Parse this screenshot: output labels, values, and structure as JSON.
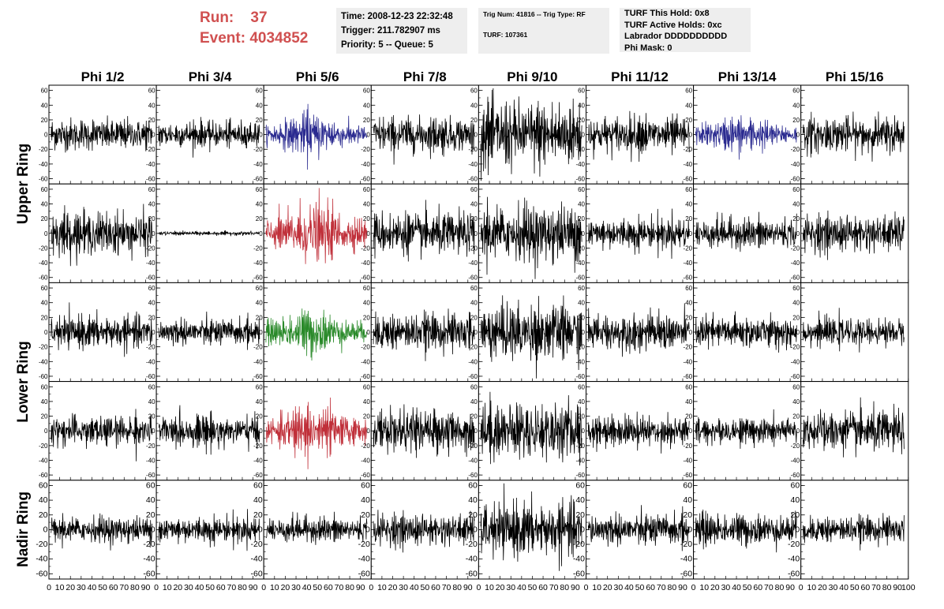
{
  "header": {
    "run_label": "Run:",
    "run_value": "37",
    "event_label": "Event:",
    "event_value": "4034852",
    "time_line": "Time: 2008-12-23 22:32:48",
    "trigger_line": "Trigger: 211.782907 ms",
    "priority_line": "Priority: 5 -- Queue: 5",
    "trig_line": "Trig Num: 41816 -- Trig Type: RF",
    "turf_line": "TURF: 107361",
    "turf_hold": "TURF This Hold: 0x8",
    "turf_active": "TURF Active Holds: 0xc",
    "labrador": "Labrador DDDDDDDDDD",
    "phi_mask": "Phi Mask: 0"
  },
  "columns": [
    "Phi 1/2",
    "Phi 3/4",
    "Phi 5/6",
    "Phi 7/8",
    "Phi 9/10",
    "Phi 11/12",
    "Phi 13/14",
    "Phi 15/16"
  ],
  "rows": [
    "Upper Ring",
    "Lower Ring",
    "Nadir Ring"
  ],
  "colors": {
    "black": "#000000",
    "blue": "#2b2b90",
    "red": "#c0303a",
    "green": "#2a8a2a"
  },
  "chart_data": {
    "type": "line",
    "x_range": [
      0,
      100
    ],
    "y_range": [
      -65,
      65
    ],
    "y_ticks": [
      "60",
      "40",
      "20",
      "0",
      "-20",
      "-40",
      "-60"
    ],
    "x_ticks": [
      "0",
      "10",
      "20",
      "30",
      "40",
      "50",
      "60",
      "70",
      "80",
      "90",
      "100"
    ],
    "panel_rows": 5,
    "panel_cols": 8,
    "amplitudes": [
      [
        12,
        10,
        11,
        14,
        26,
        14,
        10,
        14
      ],
      [
        16,
        1.5,
        16,
        16,
        22,
        12,
        12,
        14
      ],
      [
        12,
        10,
        12,
        14,
        22,
        14,
        12,
        10
      ],
      [
        12,
        12,
        14,
        16,
        22,
        12,
        10,
        16
      ],
      [
        10,
        10,
        10,
        12,
        20,
        12,
        12,
        10
      ]
    ],
    "trace_colors": [
      [
        "black",
        "black",
        "blue",
        "black",
        "black",
        "black",
        "blue",
        "black"
      ],
      [
        "black",
        "black",
        "red",
        "black",
        "black",
        "black",
        "black",
        "black"
      ],
      [
        "black",
        "black",
        "green",
        "black",
        "black",
        "black",
        "black",
        "black"
      ],
      [
        "black",
        "black",
        "red",
        "black",
        "black",
        "black",
        "black",
        "black"
      ],
      [
        "black",
        "black",
        "black",
        "black",
        "black",
        "black",
        "black",
        "black"
      ]
    ]
  }
}
